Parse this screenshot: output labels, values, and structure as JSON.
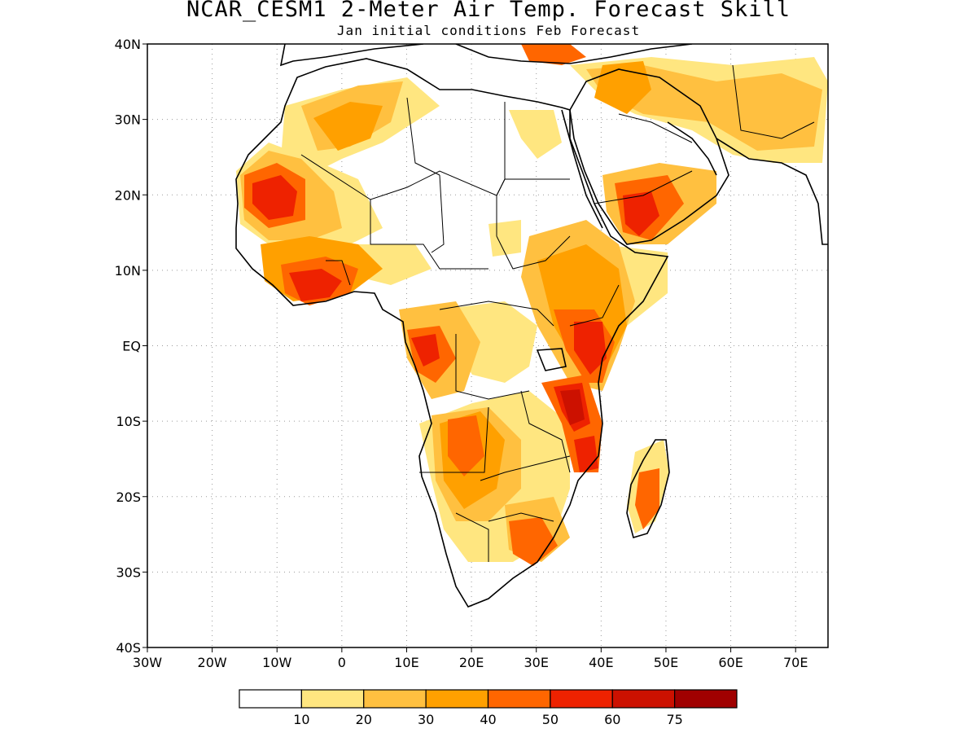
{
  "title": "NCAR_CESM1 2-Meter Air Temp. Forecast Skill",
  "subtitle": "Jan initial conditions  Feb Forecast",
  "map": {
    "lon_range": [
      -30,
      75
    ],
    "lat_range": [
      -40,
      40
    ],
    "lat_ticks": [
      "40N",
      "30N",
      "20N",
      "10N",
      "EQ",
      "10S",
      "20S",
      "30S",
      "40S"
    ],
    "lon_ticks": [
      "30W",
      "20W",
      "10W",
      "0",
      "10E",
      "20E",
      "30E",
      "40E",
      "50E",
      "60E",
      "70E"
    ],
    "grid": "dotted"
  },
  "legend": {
    "colors": [
      "#ffffff",
      "#ffe680",
      "#ffc040",
      "#ffa000",
      "#ff6600",
      "#ee2200",
      "#cc1100",
      "#a00000"
    ],
    "labels": [
      "10",
      "20",
      "30",
      "40",
      "50",
      "60",
      "75"
    ]
  }
}
